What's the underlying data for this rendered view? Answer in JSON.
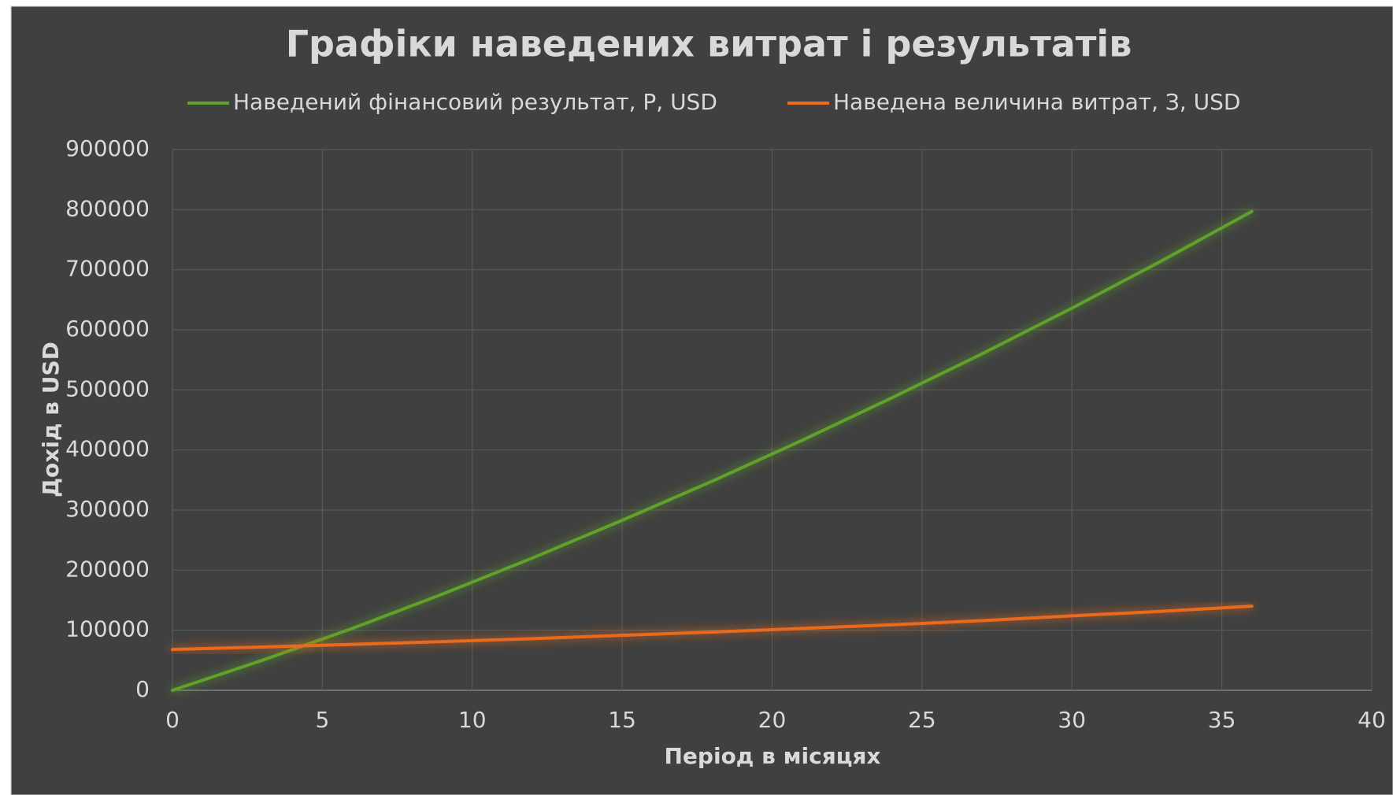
{
  "chart_data": {
    "type": "line",
    "title": "Графіки наведених витрат і результатів",
    "x_label": "Період в місяцях",
    "y_label": "Дохід в USD",
    "x": [
      0,
      3,
      6,
      9,
      12,
      15,
      18,
      21,
      24,
      27,
      30,
      33,
      36
    ],
    "series": [
      {
        "name": "Наведений фінансовий результат, Р, USD",
        "color": "#5ea12c",
        "values": [
          0,
          50000,
          103000,
          160000,
          220000,
          283000,
          348000,
          416000,
          487000,
          560000,
          636000,
          715000,
          797000
        ]
      },
      {
        "name": "Наведена величина витрат, З, USD",
        "color": "#ea6a1e",
        "values": [
          68000,
          72000,
          76500,
          81000,
          86000,
          91500,
          97000,
          103000,
          109000,
          116000,
          124000,
          131500,
          140000
        ]
      }
    ],
    "xlim": [
      0,
      40
    ],
    "xticks": [
      0,
      5,
      10,
      15,
      20,
      25,
      30,
      35,
      40
    ],
    "ylim": [
      0,
      900000
    ],
    "yticks": [
      0,
      100000,
      200000,
      300000,
      400000,
      500000,
      600000,
      700000,
      800000,
      900000
    ],
    "grid": true,
    "legend": "top"
  }
}
